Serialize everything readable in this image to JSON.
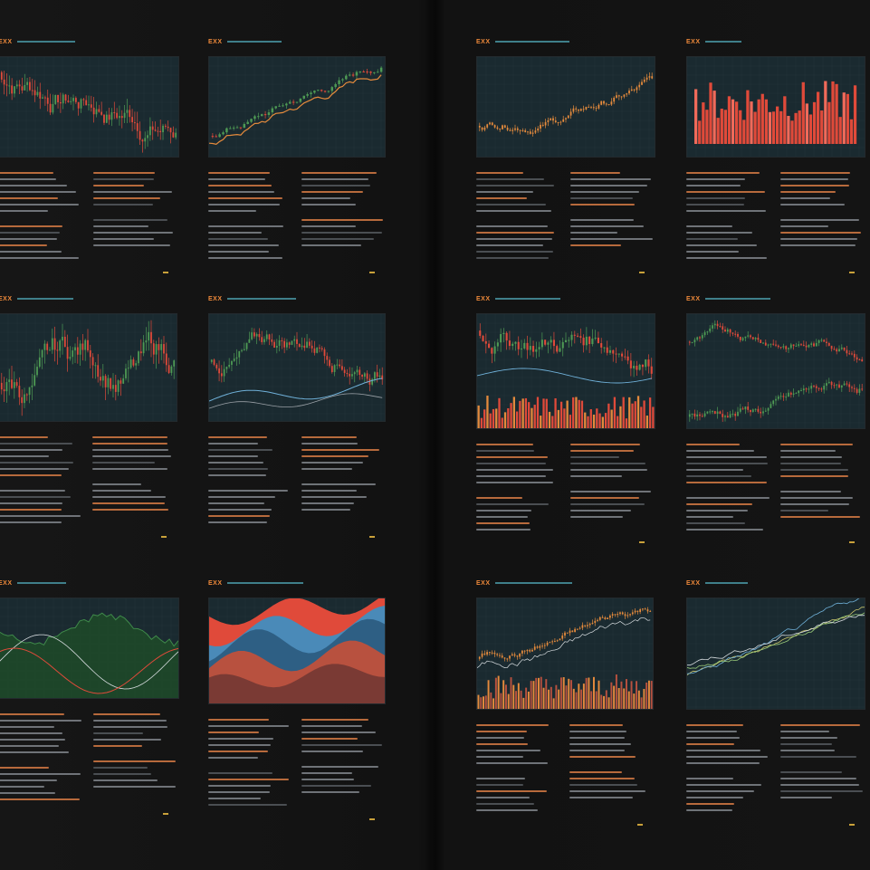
{
  "page": {
    "background": "#131313",
    "accent_colors": {
      "up_candle": "#4e9a54",
      "down_candle": "#e04a3a",
      "line_orange": "#e48a3c",
      "line_blue": "#6fb0d8",
      "grid_bg": "#1a2a30",
      "headline_text": "#7fb0b8",
      "code_text": "#f08a3a"
    }
  },
  "panels": [
    {
      "id": "p1",
      "code": "EXX",
      "chart_kind": "candles-red-green",
      "icon": "candlestick-chart-icon"
    },
    {
      "id": "p2",
      "code": "EXX",
      "chart_kind": "candles-rising",
      "icon": "candlestick-chart-icon"
    },
    {
      "id": "p3",
      "code": "EXX",
      "chart_kind": "candles-orange",
      "icon": "candlestick-chart-icon"
    },
    {
      "id": "p4",
      "code": "EXX",
      "chart_kind": "red-bars",
      "icon": "bar-chart-icon"
    },
    {
      "id": "p5",
      "code": "EXX",
      "chart_kind": "candles-red-green",
      "icon": "candlestick-chart-icon"
    },
    {
      "id": "p6",
      "code": "EXX",
      "chart_kind": "candles-with-lines",
      "icon": "candlestick-chart-icon"
    },
    {
      "id": "p7",
      "code": "EXX",
      "chart_kind": "candles-with-volume",
      "icon": "candlestick-chart-icon"
    },
    {
      "id": "p8",
      "code": "EXX",
      "chart_kind": "two-candle-bands",
      "icon": "candlestick-chart-icon"
    },
    {
      "id": "p9",
      "code": "EXX",
      "chart_kind": "green-area-lines",
      "icon": "area-chart-icon"
    },
    {
      "id": "p10",
      "code": "EXX",
      "chart_kind": "stacked-area-red-blue",
      "icon": "area-chart-icon"
    },
    {
      "id": "p11",
      "code": "EXX",
      "chart_kind": "candles-with-volume-orange",
      "icon": "candlestick-chart-icon"
    },
    {
      "id": "p12",
      "code": "EXX",
      "chart_kind": "rising-lines",
      "icon": "line-chart-icon"
    }
  ]
}
